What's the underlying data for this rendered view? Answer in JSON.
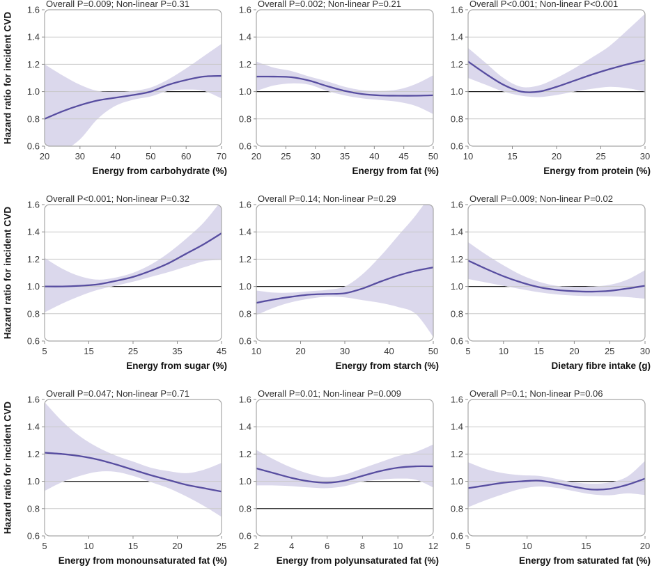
{
  "ylabel": "Hazard ratio for incident CVD",
  "colors": {
    "line": "#574da0",
    "band": "#dbd8ec",
    "grid": "#c9c9c9",
    "ref": "#1f1f1f",
    "frame": "#a6a6a6",
    "tick": "#8c8c8c",
    "title_text": "#2e2e2e",
    "tick_text": "#3a3a3a",
    "axis_title_text": "#111111"
  },
  "chart_data": [
    {
      "type": "line",
      "title": "Overall P=0.009; Non-linear P=0.31",
      "xlabel": "Energy from carbohydrate (%)",
      "xlim": [
        20,
        70
      ],
      "xticks": [
        20,
        30,
        40,
        50,
        60,
        70
      ],
      "ylim": [
        0.6,
        1.6
      ],
      "yticks": [
        0.6,
        0.8,
        1.0,
        1.2,
        1.4,
        1.6
      ],
      "ref_lines": [
        1.0
      ],
      "grid": true,
      "legend": "none",
      "x": [
        20,
        25,
        30,
        35,
        40,
        45,
        50,
        55,
        60,
        65,
        70
      ],
      "hr": [
        0.8,
        0.855,
        0.9,
        0.935,
        0.955,
        0.975,
        1.0,
        1.05,
        1.085,
        1.11,
        1.115
      ],
      "ci_low": [
        0.5,
        0.56,
        0.65,
        0.8,
        0.895,
        0.94,
        0.965,
        1.005,
        1.015,
        1.005,
        0.95
      ],
      "ci_high": [
        1.2,
        1.12,
        1.05,
        1.005,
        1.0,
        1.005,
        1.03,
        1.09,
        1.17,
        1.26,
        1.35
      ]
    },
    {
      "type": "line",
      "title": "Overall P=0.002; Non-linear P=0.21",
      "xlabel": "Energy from fat (%)",
      "xlim": [
        20,
        50
      ],
      "xticks": [
        20,
        25,
        30,
        35,
        40,
        45,
        50
      ],
      "ylim": [
        0.6,
        1.6
      ],
      "yticks": [
        0.6,
        0.8,
        1.0,
        1.2,
        1.4,
        1.6
      ],
      "ref_lines": [
        1.0
      ],
      "grid": true,
      "legend": "none",
      "x": [
        20,
        23,
        26,
        29,
        32,
        35,
        38,
        41,
        44,
        47,
        50
      ],
      "hr": [
        1.11,
        1.11,
        1.105,
        1.08,
        1.04,
        1.005,
        0.982,
        0.972,
        0.97,
        0.97,
        0.973
      ],
      "ci_low": [
        1.005,
        1.045,
        1.06,
        1.05,
        1.005,
        0.972,
        0.95,
        0.938,
        0.925,
        0.895,
        0.835
      ],
      "ci_high": [
        1.22,
        1.175,
        1.15,
        1.11,
        1.075,
        1.035,
        1.01,
        1.005,
        1.015,
        1.055,
        1.12
      ]
    },
    {
      "type": "line",
      "title": "Overall P<0.001; Non-linear P<0.001",
      "xlabel": "Energy from protein (%)",
      "xlim": [
        10,
        30
      ],
      "xticks": [
        10,
        15,
        20,
        25,
        30
      ],
      "ylim": [
        0.6,
        1.6
      ],
      "yticks": [
        0.6,
        0.8,
        1.0,
        1.2,
        1.4,
        1.6
      ],
      "ref_lines": [
        1.0
      ],
      "grid": true,
      "legend": "none",
      "x": [
        10,
        12,
        14,
        16,
        18,
        20,
        22,
        24,
        26,
        28,
        30
      ],
      "hr": [
        1.22,
        1.13,
        1.05,
        1.0,
        1.0,
        1.035,
        1.08,
        1.125,
        1.165,
        1.2,
        1.23
      ],
      "ci_low": [
        1.1,
        1.05,
        1.0,
        0.97,
        0.96,
        0.975,
        1.0,
        1.02,
        1.035,
        1.025,
        1.0
      ],
      "ci_high": [
        1.32,
        1.21,
        1.1,
        1.035,
        1.045,
        1.1,
        1.17,
        1.25,
        1.335,
        1.45,
        1.57
      ]
    },
    {
      "type": "line",
      "title": "Overall P<0.001; Non-linear P=0.32",
      "xlabel": "Energy from sugar (%)",
      "xlim": [
        5,
        45
      ],
      "xticks": [
        5,
        15,
        25,
        35,
        45
      ],
      "ylim": [
        0.6,
        1.6
      ],
      "yticks": [
        0.6,
        0.8,
        1.0,
        1.2,
        1.4,
        1.6
      ],
      "ref_lines": [
        1.0
      ],
      "grid": true,
      "legend": "none",
      "x": [
        5,
        9,
        13,
        17,
        21,
        25,
        29,
        33,
        37,
        41,
        45
      ],
      "hr": [
        1.0,
        1.0,
        1.005,
        1.015,
        1.04,
        1.07,
        1.115,
        1.17,
        1.24,
        1.31,
        1.39
      ],
      "ci_low": [
        0.81,
        0.875,
        0.93,
        0.975,
        1.005,
        1.035,
        1.07,
        1.105,
        1.145,
        1.185,
        1.195
      ],
      "ci_high": [
        1.21,
        1.13,
        1.075,
        1.05,
        1.065,
        1.1,
        1.16,
        1.245,
        1.35,
        1.47,
        1.63
      ]
    },
    {
      "type": "line",
      "title": "Overall P=0.14; Non-linear P=0.29",
      "xlabel": "Energy from starch (%)",
      "xlim": [
        10,
        50
      ],
      "xticks": [
        10,
        20,
        30,
        40,
        50
      ],
      "ylim": [
        0.6,
        1.6
      ],
      "yticks": [
        0.6,
        0.8,
        1.0,
        1.2,
        1.4,
        1.6
      ],
      "ref_lines": [
        1.0
      ],
      "grid": true,
      "legend": "none",
      "x": [
        10,
        14,
        18,
        22,
        26,
        30,
        34,
        38,
        42,
        46,
        50
      ],
      "hr": [
        0.88,
        0.905,
        0.925,
        0.94,
        0.945,
        0.95,
        0.985,
        1.035,
        1.08,
        1.115,
        1.14
      ],
      "ci_low": [
        0.79,
        0.845,
        0.885,
        0.91,
        0.925,
        0.92,
        0.9,
        0.88,
        0.85,
        0.8,
        0.63
      ],
      "ci_high": [
        0.97,
        0.955,
        0.955,
        0.965,
        0.975,
        1.0,
        1.09,
        1.22,
        1.37,
        1.52,
        1.7
      ]
    },
    {
      "type": "line",
      "title": "Overall P=0.009; Non-linear P=0.02",
      "xlabel": "Dietary fibre intake (g)",
      "xlim": [
        5,
        30
      ],
      "xticks": [
        5,
        10,
        15,
        20,
        25,
        30
      ],
      "ylim": [
        0.6,
        1.6
      ],
      "yticks": [
        0.6,
        0.8,
        1.0,
        1.2,
        1.4,
        1.6
      ],
      "ref_lines": [
        1.0
      ],
      "grid": true,
      "legend": "none",
      "x": [
        5,
        7.5,
        10,
        12.5,
        15,
        17.5,
        20,
        22.5,
        25,
        27.5,
        30
      ],
      "hr": [
        1.19,
        1.13,
        1.075,
        1.03,
        0.995,
        0.975,
        0.965,
        0.962,
        0.968,
        0.985,
        1.005
      ],
      "ci_low": [
        1.055,
        1.03,
        1.005,
        0.98,
        0.958,
        0.942,
        0.933,
        0.929,
        0.928,
        0.922,
        0.91
      ],
      "ci_high": [
        1.325,
        1.235,
        1.155,
        1.085,
        1.035,
        1.005,
        0.998,
        1.0,
        1.012,
        1.05,
        1.12
      ]
    },
    {
      "type": "line",
      "title": "Overall P=0.047; Non-linear P=0.71",
      "xlabel": "Energy from monounsaturated fat (%)",
      "xlim": [
        5,
        25
      ],
      "xticks": [
        5,
        10,
        15,
        20,
        25
      ],
      "ylim": [
        0.6,
        1.6
      ],
      "yticks": [
        0.6,
        0.8,
        1.0,
        1.2,
        1.4,
        1.6
      ],
      "ref_lines": [
        1.0
      ],
      "grid": true,
      "legend": "none",
      "x": [
        5,
        7,
        9,
        11,
        13,
        15,
        17,
        19,
        21,
        23,
        25
      ],
      "hr": [
        1.21,
        1.2,
        1.185,
        1.16,
        1.125,
        1.085,
        1.045,
        1.01,
        0.975,
        0.95,
        0.925
      ],
      "ci_low": [
        0.93,
        0.995,
        1.04,
        1.07,
        1.07,
        1.04,
        0.995,
        0.95,
        0.89,
        0.82,
        0.74
      ],
      "ci_high": [
        1.58,
        1.44,
        1.33,
        1.25,
        1.19,
        1.145,
        1.1,
        1.075,
        1.06,
        1.085,
        1.135
      ]
    },
    {
      "type": "line",
      "title": "Overall P=0.01; Non-linear P=0.009",
      "xlabel": "Energy from polyunsaturated fat (%)",
      "xlim": [
        2,
        12
      ],
      "xticks": [
        2,
        4,
        6,
        8,
        10,
        12
      ],
      "ylim": [
        0.6,
        1.6
      ],
      "yticks": [
        0.6,
        0.8,
        1.0,
        1.2,
        1.4,
        1.6
      ],
      "ref_lines": [
        0.8,
        1.0
      ],
      "grid": true,
      "legend": "none",
      "x": [
        2,
        3,
        4,
        5,
        6,
        7,
        8,
        9,
        10,
        11,
        12
      ],
      "hr": [
        1.095,
        1.06,
        1.025,
        1.0,
        0.99,
        1.005,
        1.04,
        1.075,
        1.1,
        1.11,
        1.11
      ],
      "ci_low": [
        0.97,
        0.97,
        0.965,
        0.955,
        0.95,
        0.965,
        0.998,
        1.012,
        1.02,
        1.012,
        0.955
      ],
      "ci_high": [
        1.23,
        1.16,
        1.1,
        1.055,
        1.03,
        1.05,
        1.095,
        1.14,
        1.185,
        1.215,
        1.27
      ]
    },
    {
      "type": "line",
      "title": "Overall P=0.1; Non-linear P=0.06",
      "xlabel": "Energy from saturated fat (%)",
      "xlim": [
        5,
        20
      ],
      "xticks": [
        5,
        10,
        15,
        20
      ],
      "ylim": [
        0.6,
        1.6
      ],
      "yticks": [
        0.6,
        0.8,
        1.0,
        1.2,
        1.4,
        1.6
      ],
      "ref_lines": [
        1.0
      ],
      "grid": true,
      "legend": "none",
      "x": [
        5,
        6.5,
        8,
        9.5,
        11,
        12.5,
        14,
        15.5,
        17,
        18.5,
        20
      ],
      "hr": [
        0.95,
        0.97,
        0.99,
        1.0,
        1.005,
        0.985,
        0.96,
        0.94,
        0.945,
        0.975,
        1.02
      ],
      "ci_low": [
        0.81,
        0.862,
        0.907,
        0.945,
        0.962,
        0.952,
        0.928,
        0.905,
        0.898,
        0.912,
        0.9
      ],
      "ci_high": [
        1.14,
        1.09,
        1.06,
        1.045,
        1.04,
        1.018,
        0.993,
        0.983,
        0.992,
        1.035,
        1.15
      ]
    }
  ]
}
